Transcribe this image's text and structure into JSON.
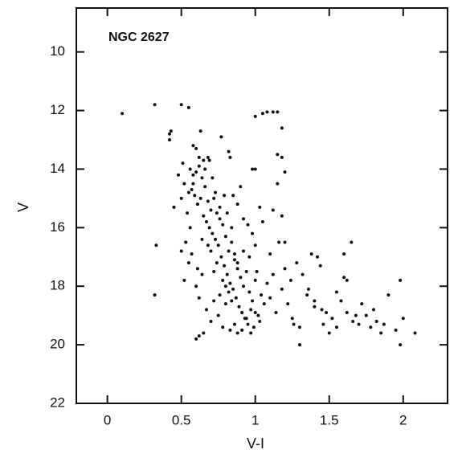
{
  "chart_data": {
    "type": "scatter",
    "annotation": "NGC 2627",
    "x_label": "V-I",
    "y_label": "V",
    "xlim": [
      -0.21,
      2.3
    ],
    "ylim": [
      22,
      8.5
    ],
    "y_inverted": true,
    "xticks": [
      0,
      0.5,
      1,
      1.5,
      2
    ],
    "yticks": [
      10,
      12,
      14,
      16,
      18,
      20,
      22
    ],
    "grid": false,
    "series": [
      {
        "color": "#111111",
        "x": [
          0.1,
          0.32,
          0.5,
          0.55,
          1.0,
          1.05,
          1.08,
          1.12,
          1.15,
          1.18,
          0.42,
          0.42,
          0.43,
          0.63,
          0.58,
          0.6,
          0.62,
          0.65,
          0.68,
          0.82,
          0.83,
          0.77,
          1.15,
          1.18,
          1.2,
          0.98,
          1.0,
          0.33,
          0.32,
          0.45,
          1.65,
          2.08,
          1.98,
          1.98,
          2.0,
          1.9,
          1.87,
          1.8,
          1.82,
          1.78,
          1.75,
          1.7,
          1.66,
          1.6,
          1.62,
          1.55,
          1.5,
          1.45,
          1.4,
          1.35,
          1.38,
          1.42,
          1.3,
          1.25,
          1.3,
          0.6,
          0.62,
          0.65,
          0.56,
          0.58,
          0.6,
          0.62,
          0.64,
          0.58,
          0.55,
          0.57,
          0.63,
          0.66,
          0.61,
          0.59,
          0.68,
          0.7,
          0.72,
          0.65,
          0.67,
          0.69,
          0.74,
          0.71,
          0.76,
          0.73,
          0.78,
          0.8,
          0.75,
          0.77,
          0.82,
          0.79,
          0.84,
          0.81,
          0.86,
          0.83,
          0.88,
          0.85,
          0.9,
          0.87,
          0.92,
          0.89,
          0.94,
          0.91,
          0.96,
          0.93,
          0.98,
          0.95,
          1.0,
          0.97,
          1.02,
          0.99,
          1.04,
          1.01,
          1.06,
          1.03,
          0.5,
          0.52,
          0.55,
          0.57,
          0.6,
          0.62,
          0.64,
          0.67,
          0.7,
          0.72,
          0.75,
          0.78,
          0.8,
          0.83,
          0.86,
          0.88,
          0.91,
          0.94,
          0.97,
          1.0,
          1.08,
          1.1,
          1.12,
          1.14,
          1.16,
          1.18,
          1.2,
          1.22,
          1.24,
          1.26,
          1.1,
          1.05,
          1.12,
          1.2,
          1.28,
          1.32,
          1.36,
          1.4,
          1.44,
          1.48,
          0.88,
          0.9,
          0.92,
          0.85,
          0.95,
          0.98,
          1.0,
          1.03,
          1.15,
          1.18,
          0.5,
          0.52,
          0.54,
          0.56,
          0.53,
          0.48,
          0.51,
          0.66,
          0.69,
          0.71,
          0.73,
          0.76,
          0.79,
          0.81,
          0.84,
          0.7,
          0.74,
          0.78,
          0.82,
          0.86,
          1.55,
          1.58,
          1.62,
          1.68,
          1.72,
          1.85,
          1.95,
          1.52,
          1.46,
          1.6,
          0.61,
          0.64,
          0.68,
          0.72,
          0.76,
          0.8,
          0.84,
          0.88,
          0.92,
          0.96
        ],
        "values": [
          12.1,
          11.8,
          11.8,
          11.9,
          12.2,
          12.1,
          12.05,
          12.05,
          12.05,
          12.6,
          12.8,
          13.0,
          12.7,
          12.7,
          13.2,
          13.3,
          13.6,
          13.7,
          13.6,
          13.4,
          13.6,
          12.9,
          13.5,
          13.6,
          14.1,
          14.0,
          14.0,
          16.6,
          18.3,
          15.3,
          16.5,
          19.6,
          17.8,
          20.0,
          19.1,
          18.3,
          19.3,
          18.8,
          19.2,
          19.4,
          19.0,
          19.3,
          19.2,
          17.7,
          17.8,
          19.4,
          19.6,
          18.8,
          18.7,
          18.3,
          16.9,
          17.0,
          20.0,
          19.1,
          19.4,
          19.8,
          19.7,
          19.6,
          14.0,
          14.2,
          14.1,
          13.9,
          14.3,
          14.5,
          14.8,
          14.7,
          15.0,
          14.6,
          15.2,
          14.9,
          15.1,
          15.4,
          15.0,
          15.6,
          15.8,
          16.0,
          15.5,
          16.2,
          15.7,
          16.4,
          15.9,
          16.3,
          16.6,
          17.0,
          16.8,
          17.3,
          16.5,
          17.6,
          17.1,
          17.9,
          17.4,
          18.1,
          17.7,
          18.4,
          18.0,
          18.7,
          17.5,
          18.9,
          18.2,
          19.1,
          18.5,
          19.3,
          17.8,
          18.8,
          19.0,
          19.4,
          18.3,
          17.5,
          18.6,
          19.2,
          16.8,
          17.8,
          17.2,
          16.9,
          18.0,
          18.4,
          17.6,
          18.8,
          19.2,
          18.5,
          19.0,
          19.4,
          18.6,
          19.5,
          19.3,
          19.6,
          19.5,
          19.1,
          19.6,
          18.9,
          17.9,
          18.4,
          17.6,
          18.9,
          16.5,
          18.1,
          17.4,
          18.6,
          17.8,
          19.3,
          16.9,
          15.8,
          15.4,
          16.5,
          17.2,
          17.6,
          18.1,
          18.5,
          17.3,
          18.9,
          15.2,
          14.6,
          15.7,
          14.9,
          15.9,
          16.2,
          16.6,
          15.3,
          14.5,
          15.6,
          15.0,
          14.5,
          15.5,
          16.0,
          16.5,
          14.2,
          13.8,
          14.0,
          13.7,
          14.3,
          14.8,
          15.3,
          14.9,
          15.5,
          16.0,
          16.8,
          17.2,
          17.8,
          18.2,
          16.9,
          18.2,
          18.5,
          18.9,
          19.0,
          18.6,
          19.6,
          19.5,
          19.1,
          19.3,
          16.9,
          17.4,
          16.4,
          16.6,
          17.5,
          18.3,
          18.0,
          18.5,
          17.2,
          16.8,
          17.0
        ]
      }
    ]
  }
}
